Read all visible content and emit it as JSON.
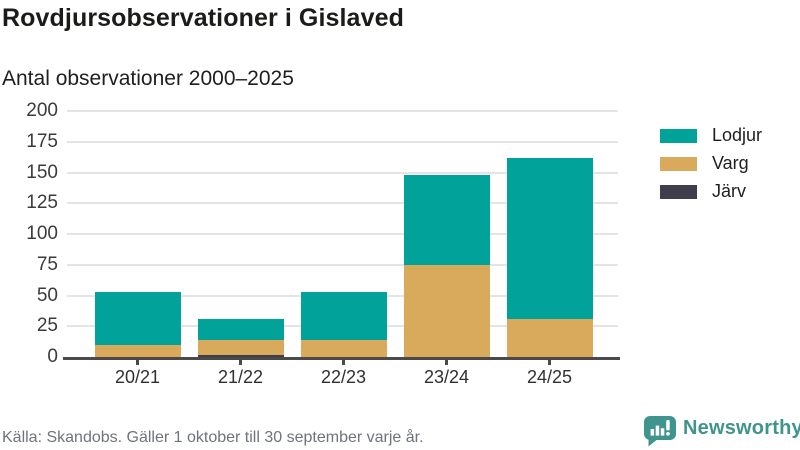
{
  "header": {
    "title": "Rovdjursobservationer i Gislaved",
    "subtitle": "Antal observationer 2000–2025"
  },
  "chart_data": {
    "type": "bar",
    "stacked": true,
    "title": "Rovdjursobservationer i Gislaved",
    "subtitle": "Antal observationer 2000–2025",
    "categories": [
      "20/21",
      "21/22",
      "22/23",
      "23/24",
      "24/25"
    ],
    "series": [
      {
        "name": "Lodjur",
        "color": "#00a29a",
        "values": [
          43,
          17,
          39,
          73,
          131
        ]
      },
      {
        "name": "Varg",
        "color": "#d9aa5c",
        "values": [
          10,
          12,
          14,
          75,
          31
        ]
      },
      {
        "name": "Järv",
        "color": "#403d4d",
        "values": [
          0,
          2,
          0,
          0,
          0
        ]
      }
    ],
    "totals": [
      53,
      31,
      53,
      148,
      162
    ],
    "xlabel": "",
    "ylabel": "",
    "ylim": [
      0,
      200
    ],
    "yticks": [
      0,
      25,
      50,
      75,
      100,
      125,
      150,
      175,
      200
    ],
    "grid": true,
    "legend_position": "right"
  },
  "legend": {
    "items": [
      {
        "label": "Lodjur",
        "color": "#00a29a"
      },
      {
        "label": "Varg",
        "color": "#d9aa5c"
      },
      {
        "label": "Järv",
        "color": "#403d4d"
      }
    ]
  },
  "footer": {
    "source": "Källa: Skandobs. Gäller 1 oktober till 30 september varje år."
  },
  "logo": {
    "text": "Newsworthy",
    "icon": "newsworthy-speech-bubble-bar-chart-icon",
    "color": "#3f948d"
  },
  "colors": {
    "accent_teal": "#00a29a",
    "accent_gold": "#d9aa5c",
    "accent_dark": "#403d4d",
    "gridline": "#e4e4e4",
    "axis": "#4a4a4a",
    "text": "#1f1f1f",
    "muted_text": "#6f737d",
    "background": "#ffffff"
  }
}
